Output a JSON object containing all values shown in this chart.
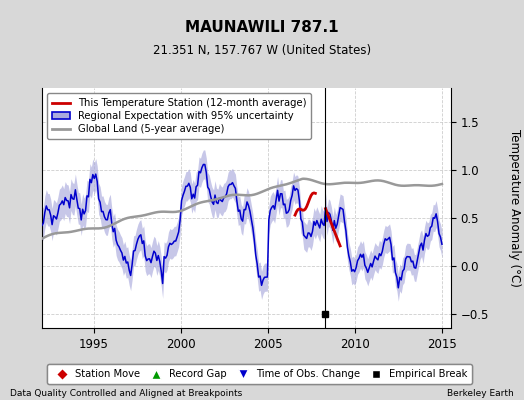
{
  "title": "MAUNAWILI 787.1",
  "subtitle": "21.351 N, 157.767 W (United States)",
  "ylabel": "Temperature Anomaly (°C)",
  "xlabel_left": "Data Quality Controlled and Aligned at Breakpoints",
  "xlabel_right": "Berkeley Earth",
  "ylim": [
    -0.65,
    1.85
  ],
  "xlim_start": 1992.0,
  "xlim_end": 2015.5,
  "yticks": [
    -0.5,
    0.0,
    0.5,
    1.0,
    1.5
  ],
  "xticks": [
    1995,
    2000,
    2005,
    2010,
    2015
  ],
  "bg_color": "#d8d8d8",
  "plot_bg_color": "#ffffff",
  "grid_color": "#c8c8c8",
  "blue_line_color": "#0000cc",
  "blue_fill_color": "#aaaadd",
  "red_line_color": "#cc0000",
  "gray_line_color": "#999999",
  "empirical_break_x": 2008.25,
  "red_seg1_start": 2006.5,
  "red_seg1_end": 2007.75,
  "red_seg2_start": 2008.25,
  "red_seg2_end": 2009.2,
  "legend1_entries": [
    {
      "label": "This Temperature Station (12-month average)",
      "color": "#cc0000"
    },
    {
      "label": "Regional Expectation with 95% uncertainty",
      "color": "#0000cc"
    },
    {
      "label": "Global Land (5-year average)",
      "color": "#999999"
    }
  ],
  "legend2_entries": [
    {
      "label": "Station Move",
      "color": "#cc0000",
      "marker": "D"
    },
    {
      "label": "Record Gap",
      "color": "#009900",
      "marker": "^"
    },
    {
      "label": "Time of Obs. Change",
      "color": "#0000cc",
      "marker": "v"
    },
    {
      "label": "Empirical Break",
      "color": "#000000",
      "marker": "s"
    }
  ]
}
